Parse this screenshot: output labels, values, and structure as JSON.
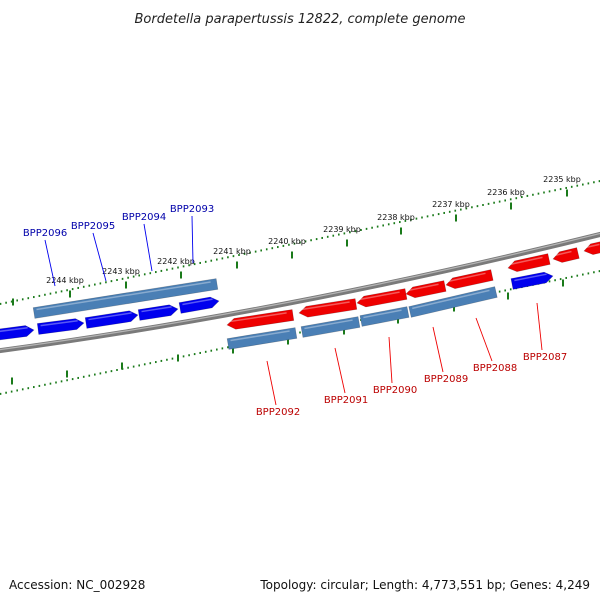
{
  "title": "Bordetella parapertussis 12822, complete genome",
  "footer": {
    "accession": "Accession: NC_002928",
    "stats": "Topology: circular; Length: 4,773,551 bp; Genes: 4,249"
  },
  "colors": {
    "forward": "#0000ee",
    "reverse": "#ee0000",
    "rna": "#4a7fb5",
    "backbone": "#808080",
    "ticks": "#1a7a1a",
    "forward_label": "#0000aa",
    "reverse_label": "#bb0000"
  },
  "scale_labels": [
    "2235 kbp",
    "2236 kbp",
    "2237 kbp",
    "2238 kbp",
    "2239 kbp",
    "2240 kbp",
    "2241 kbp",
    "2242 kbp",
    "2243 kbp",
    "2244 kbp"
  ],
  "forward_genes": [
    {
      "label": "BPP2096"
    },
    {
      "label": "BPP2095"
    },
    {
      "label": "BPP2094"
    },
    {
      "label": "BPP2093"
    }
  ],
  "reverse_genes": [
    {
      "label": "BPP2092"
    },
    {
      "label": "BPP2091"
    },
    {
      "label": "BPP2090"
    },
    {
      "label": "BPP2089"
    },
    {
      "label": "BPP2088"
    },
    {
      "label": "BPP2087"
    }
  ]
}
